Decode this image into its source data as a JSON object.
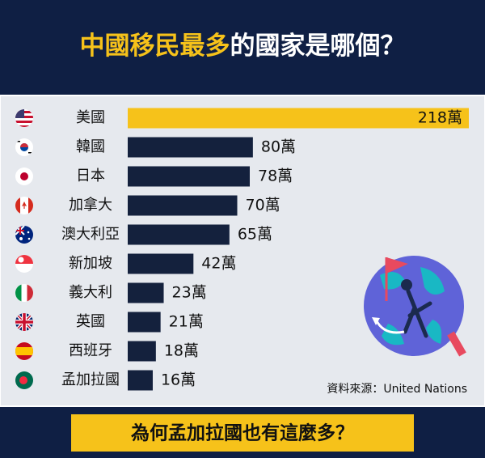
{
  "chart_data": {
    "type": "bar",
    "orientation": "horizontal",
    "title": {
      "highlight": "中國移民最多",
      "rest": "的國家是哪個？"
    },
    "categories": [
      "美國",
      "韓國",
      "日本",
      "加拿大",
      "澳大利亞",
      "新加坡",
      "義大利",
      "英國",
      "西班牙",
      "孟加拉國"
    ],
    "values": [
      218,
      80,
      78,
      70,
      65,
      42,
      23,
      21,
      18,
      16
    ],
    "value_labels": [
      "218萬",
      "80萬",
      "78萬",
      "70萬",
      "65萬",
      "42萬",
      "23萬",
      "21萬",
      "18萬",
      "16萬"
    ],
    "color": "#14213d",
    "highlight_color": "#f6c21a",
    "source": "資料來源：United Nations",
    "footer": "為何孟加拉國也有這麼多？"
  }
}
